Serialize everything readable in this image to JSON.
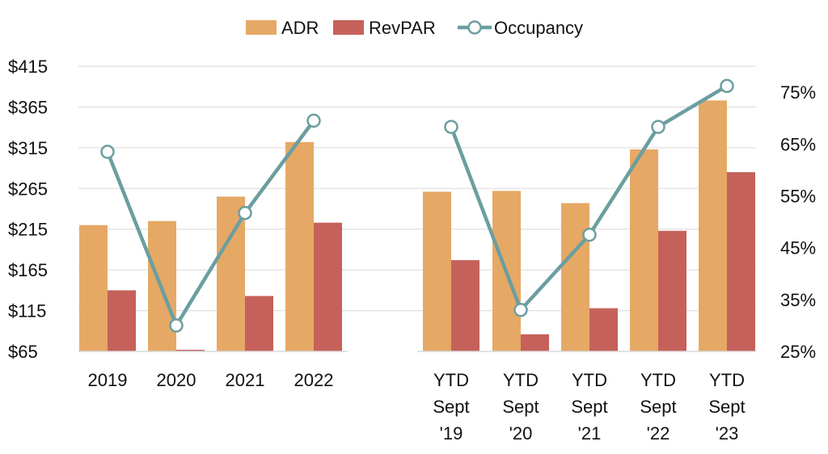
{
  "chart_data": {
    "type": "bar",
    "title": "",
    "categories": [
      [
        "2019"
      ],
      [
        "2020"
      ],
      [
        "2021"
      ],
      [
        "2022"
      ],
      [
        "YTD",
        "Sept",
        "'19"
      ],
      [
        "YTD",
        "Sept",
        "'20"
      ],
      [
        "YTD",
        "Sept",
        "'21"
      ],
      [
        "YTD",
        "Sept",
        "'22"
      ],
      [
        "YTD",
        "Sept",
        "'23"
      ]
    ],
    "series": [
      {
        "name": "ADR",
        "kind": "bar",
        "axis": "left",
        "color": "#E6A865",
        "values": [
          220,
          225,
          255,
          322,
          261,
          262,
          247,
          313,
          373
        ]
      },
      {
        "name": "RevPAR",
        "kind": "bar",
        "axis": "left",
        "color": "#C5615A",
        "values": [
          140,
          67,
          133,
          223,
          177,
          86,
          118,
          213,
          285
        ]
      },
      {
        "name": "Occupancy",
        "kind": "line",
        "axis": "right",
        "color": "#6B9EA0",
        "values": [
          63.5,
          30.0,
          51.7,
          69.5,
          68.3,
          33.0,
          47.5,
          68.3,
          76.2
        ]
      }
    ],
    "y_left": {
      "min": 65,
      "max": 415,
      "ticks": [
        "$415",
        "$365",
        "$315",
        "$265",
        "$215",
        "$165",
        "$115",
        "$65"
      ]
    },
    "y_right": {
      "min": 25,
      "max": 80,
      "ticks": [
        "75%",
        "65%",
        "55%",
        "45%",
        "35%",
        "25%"
      ]
    },
    "legend": {
      "position": "top-center",
      "entries": [
        "ADR",
        "RevPAR",
        "Occupancy"
      ]
    },
    "grid": true
  }
}
